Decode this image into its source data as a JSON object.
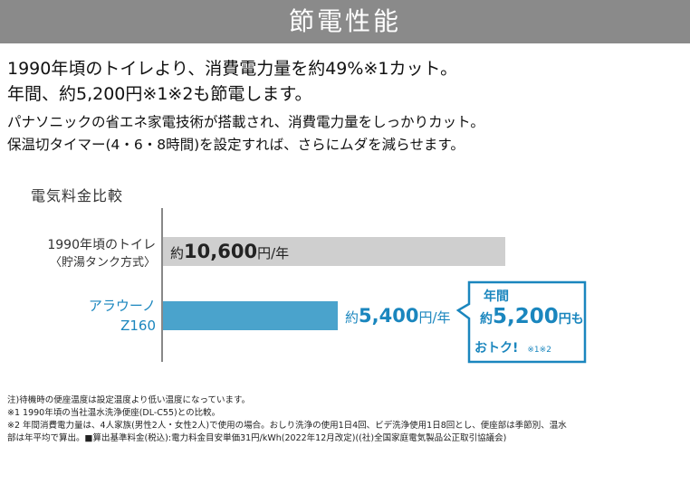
{
  "header": {
    "title": "節電性能"
  },
  "lead": {
    "line1": "1990年頃のトイレより、消費電力量を約49%※1カット。",
    "line2": "年間、約5,200円※1※2も節電します。"
  },
  "sub": {
    "line1": "パナソニックの省エネ家電技術が搭載され、消費電力量をしっかりカット。",
    "line2": "保温切タイマー(4・6・8時間)を設定すれば、さらにムダを減らせます。"
  },
  "chart_data": {
    "type": "bar",
    "orientation": "horizontal",
    "title": "電気料金比較",
    "categories": [
      {
        "line1": "1990年頃のトイレ",
        "line2": "〈貯湯タンク方式〉"
      },
      {
        "line1": "アラウーノ",
        "line2": "Z160"
      }
    ],
    "values": [
      10600,
      5400
    ],
    "value_labels": [
      {
        "prefix": "約",
        "number": "10,600",
        "suffix": "円/年"
      },
      {
        "prefix": "約",
        "number": "5,400",
        "suffix": "円/年"
      }
    ],
    "colors": [
      "#cfcfcf",
      "#4aa3cc"
    ],
    "xlim": [
      0,
      10600
    ],
    "callout": {
      "line1": "年間",
      "line2_prefix": "約",
      "line2_number": "5,200",
      "line2_suffix": "円も",
      "line3": "おトク!",
      "ref": "※1※2"
    }
  },
  "notes": [
    "注)待機時の便座温度は設定温度より低い温度になっています。",
    "※1 1990年頃の当社温水洗浄便座(DL-C55)との比較。",
    "※2 年間消費電力量は、4人家族(男性2人・女性2人)で使用の場合。おしり洗浄の使用1日4回、ビデ洗浄使用1日8回とし、便座部は季節別、温水",
    "部は年平均で算出。■算出基準料金(税込):電力料金目安単価31円/kWh(2022年12月改定)((社)全国家庭電気製品公正取引協議会)"
  ],
  "colors": {
    "banner": "#8a8a8a",
    "accent": "#1a86be"
  }
}
